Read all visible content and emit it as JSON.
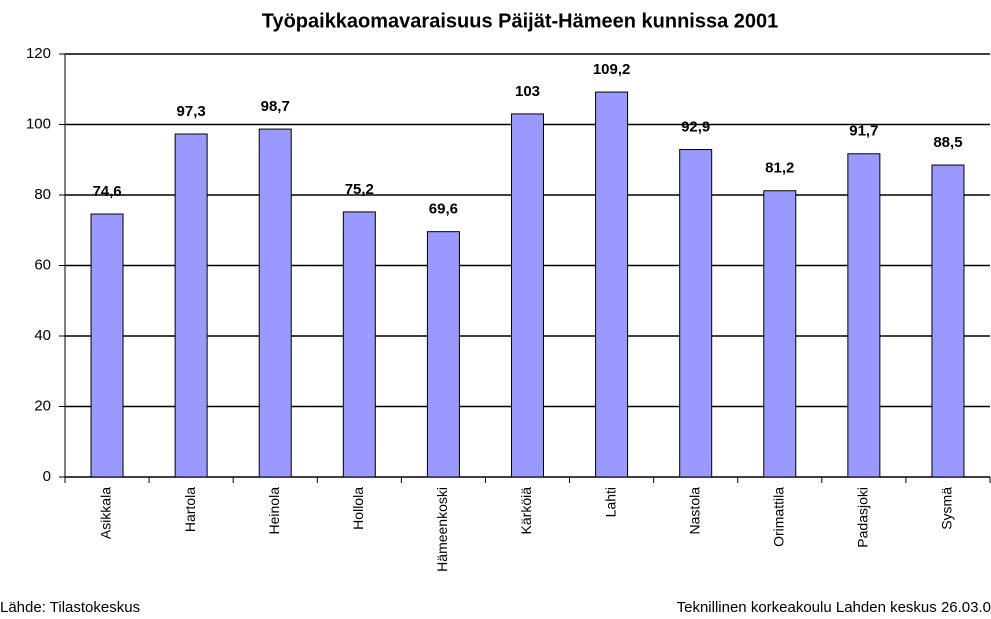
{
  "chart_data": {
    "type": "bar",
    "title": "Työpaikkaomavaraisuus Päijät-Hämeen kunnissa 2001",
    "categories": [
      "Asikkala",
      "Hartola",
      "Heinola",
      "Hollola",
      "Hämeenkoski",
      "Kärköiä",
      "Lahti",
      "Nastola",
      "Orimattila",
      "Padasjoki",
      "Sysmä"
    ],
    "values": [
      74.6,
      97.3,
      98.7,
      75.2,
      69.6,
      103,
      109.2,
      92.9,
      81.2,
      91.7,
      88.5
    ],
    "value_labels": [
      "74,6",
      "97,3",
      "98,7",
      "75,2",
      "69,6",
      "103",
      "109,2",
      "92,9",
      "81,2",
      "91,7",
      "88,5"
    ],
    "color": "#9999ff",
    "ylim": [
      0,
      120
    ],
    "yticks": [
      0,
      20,
      40,
      60,
      80,
      100,
      120
    ],
    "grid": true,
    "annotations": [
      "Lähde: Tilastokeskus",
      "Teknillinen korkeakoulu Lahden keskus 26.03.0"
    ]
  }
}
